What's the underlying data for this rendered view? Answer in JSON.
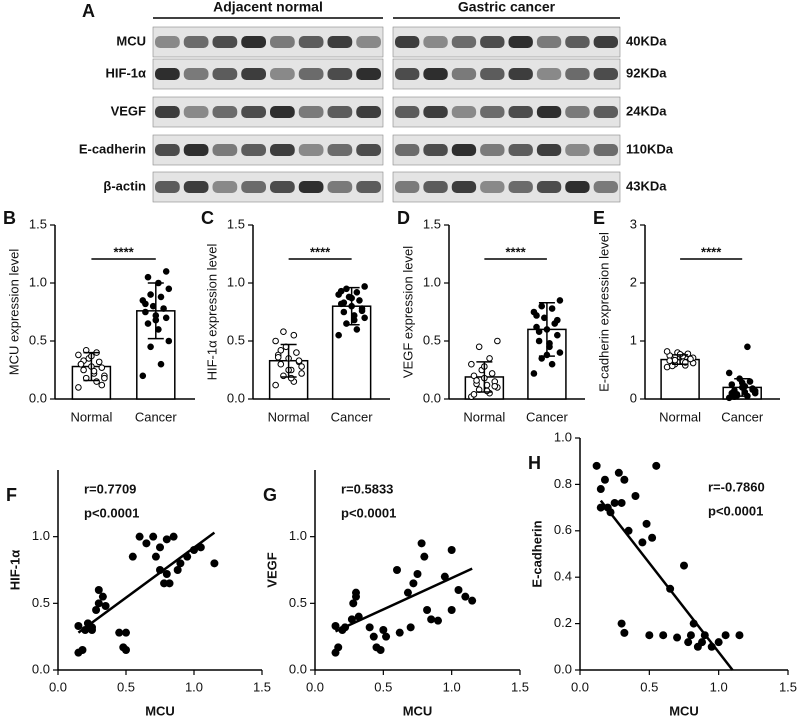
{
  "blot": {
    "panel": "A",
    "groups": [
      "Adjacent normal",
      "Gastric cancer"
    ],
    "rows": [
      {
        "label": "MCU",
        "size": "40KDa"
      },
      {
        "label": "HIF-1α",
        "size": "92KDa"
      },
      {
        "label": "VEGF",
        "size": "24KDa"
      },
      {
        "label": "E-cadherin",
        "size": "110KDa"
      },
      {
        "label": "β-actin",
        "size": "43KDa"
      }
    ]
  },
  "chart_data": [
    {
      "type": "bar",
      "panel": "B",
      "ylabel": "MCU expression level",
      "categories": [
        "Normal",
        "Cancer"
      ],
      "values": [
        0.28,
        0.76
      ],
      "errors": [
        0.12,
        0.24
      ],
      "points": [
        [
          0.1,
          0.15,
          0.18,
          0.2,
          0.22,
          0.25,
          0.27,
          0.28,
          0.3,
          0.32,
          0.35,
          0.38,
          0.4,
          0.42,
          0.18,
          0.24,
          0.33,
          0.12,
          0.37,
          0.3
        ],
        [
          0.2,
          0.3,
          0.45,
          0.5,
          0.6,
          0.65,
          0.7,
          0.72,
          0.75,
          0.78,
          0.8,
          0.85,
          0.88,
          0.9,
          0.95,
          1.0,
          1.05,
          1.1,
          0.68,
          0.82
        ]
      ],
      "marker_fill": [
        "open",
        "filled"
      ],
      "significance": "****",
      "color": "#ffffff",
      "ylim": [
        0,
        1.5
      ],
      "yticks": [
        {
          "value": 0,
          "label": "0.0"
        },
        0.5,
        {
          "value": 1,
          "label": "1.0"
        },
        1.5
      ]
    },
    {
      "type": "bar",
      "panel": "C",
      "ylabel": "HIF-1α expression level",
      "categories": [
        "Normal",
        "Cancer"
      ],
      "values": [
        0.33,
        0.8
      ],
      "errors": [
        0.14,
        0.16
      ],
      "points": [
        [
          0.12,
          0.15,
          0.2,
          0.22,
          0.25,
          0.3,
          0.32,
          0.35,
          0.38,
          0.4,
          0.45,
          0.5,
          0.55,
          0.58,
          0.28,
          0.18,
          0.42,
          0.33,
          0.25,
          0.36
        ],
        [
          0.55,
          0.6,
          0.65,
          0.7,
          0.72,
          0.75,
          0.78,
          0.8,
          0.82,
          0.85,
          0.88,
          0.9,
          0.92,
          0.95,
          0.97,
          0.68,
          0.83,
          0.76,
          0.87,
          0.93
        ]
      ],
      "marker_fill": [
        "open",
        "filled"
      ],
      "significance": "****",
      "color": "#ffffff",
      "ylim": [
        0,
        1.5
      ],
      "yticks": [
        {
          "value": 0,
          "label": "0.0"
        },
        0.5,
        {
          "value": 1,
          "label": "1.0"
        },
        1.5
      ]
    },
    {
      "type": "bar",
      "panel": "D",
      "ylabel": "VEGF expression level",
      "categories": [
        "Normal",
        "Cancer"
      ],
      "values": [
        0.19,
        0.6
      ],
      "errors": [
        0.13,
        0.23
      ],
      "points": [
        [
          0.02,
          0.05,
          0.08,
          0.1,
          0.12,
          0.13,
          0.15,
          0.18,
          0.2,
          0.22,
          0.25,
          0.3,
          0.35,
          0.45,
          0.5,
          0.07,
          0.16,
          0.11,
          0.28,
          0.04
        ],
        [
          0.22,
          0.3,
          0.35,
          0.4,
          0.45,
          0.5,
          0.55,
          0.6,
          0.62,
          0.65,
          0.7,
          0.75,
          0.78,
          0.8,
          0.85,
          0.48,
          0.58,
          0.68,
          0.38,
          0.72
        ]
      ],
      "marker_fill": [
        "open",
        "filled"
      ],
      "significance": "****",
      "color": "#ffffff",
      "ylim": [
        0,
        1.5
      ],
      "yticks": [
        {
          "value": 0,
          "label": "0.0"
        },
        0.5,
        {
          "value": 1,
          "label": "1.0"
        },
        1.5
      ]
    },
    {
      "type": "bar",
      "panel": "E",
      "ylabel": "E-cadherin expression level",
      "categories": [
        "Normal",
        "Cancer"
      ],
      "values": [
        0.68,
        0.2
      ],
      "errors": [
        0.08,
        0.15
      ],
      "points": [
        [
          0.55,
          0.58,
          0.6,
          0.62,
          0.65,
          0.68,
          0.7,
          0.72,
          0.75,
          0.78,
          0.8,
          0.82,
          0.63,
          0.67,
          0.71,
          0.74,
          0.57,
          0.69,
          0.77,
          0.66
        ],
        [
          0.02,
          0.05,
          0.08,
          0.1,
          0.12,
          0.15,
          0.18,
          0.2,
          0.25,
          0.3,
          0.35,
          0.45,
          0.9,
          0.06,
          0.14,
          0.22,
          0.04,
          0.16,
          0.28,
          0.1
        ]
      ],
      "marker_fill": [
        "open",
        "filled"
      ],
      "significance": "****",
      "color": "#ffffff",
      "ylim": [
        0,
        3
      ],
      "yticks": [
        0,
        1,
        2,
        3
      ]
    },
    {
      "type": "scatter",
      "panel": "F",
      "xlabel": "MCU",
      "ylabel": "HIF-1α",
      "x": [
        0.15,
        0.15,
        0.18,
        0.2,
        0.22,
        0.25,
        0.28,
        0.3,
        0.3,
        0.33,
        0.35,
        0.45,
        0.48,
        0.5,
        0.5,
        0.55,
        0.6,
        0.65,
        0.7,
        0.72,
        0.75,
        0.78,
        0.8,
        0.82,
        0.8,
        0.85,
        0.88,
        0.9,
        0.95,
        1.0,
        1.05,
        1.15,
        0.75,
        0.25
      ],
      "y": [
        0.33,
        0.13,
        0.15,
        0.3,
        0.35,
        0.3,
        0.45,
        0.5,
        0.6,
        0.55,
        0.48,
        0.28,
        0.17,
        0.28,
        0.15,
        0.85,
        1.0,
        0.95,
        1.0,
        0.85,
        0.75,
        0.65,
        0.72,
        0.65,
        0.98,
        1.0,
        0.75,
        0.8,
        0.85,
        0.9,
        0.92,
        0.8,
        0.92,
        0.32
      ],
      "fit": {
        "x": [
          0.15,
          1.15
        ],
        "y": [
          0.28,
          1.03
        ]
      },
      "annotations": [
        "r=0.7709",
        "p<0.0001"
      ],
      "xlim": [
        0,
        1.5
      ],
      "xticks": [
        {
          "value": 0,
          "label": "0.0"
        },
        0.5,
        {
          "value": 1,
          "label": "1.0"
        },
        1.5
      ],
      "ylim": [
        0,
        1.5
      ],
      "yticks": [
        {
          "value": 0,
          "label": "0.0"
        },
        0.5,
        {
          "value": 1,
          "label": "1.0"
        }
      ]
    },
    {
      "type": "scatter",
      "panel": "G",
      "xlabel": "MCU",
      "ylabel": "VEGF",
      "x": [
        0.15,
        0.17,
        0.15,
        0.2,
        0.22,
        0.27,
        0.28,
        0.3,
        0.3,
        0.32,
        0.4,
        0.43,
        0.45,
        0.48,
        0.5,
        0.52,
        0.6,
        0.62,
        0.7,
        0.72,
        0.75,
        0.78,
        0.8,
        0.82,
        0.85,
        0.9,
        0.95,
        1.0,
        1.0,
        1.05,
        1.1,
        1.15,
        0.68
      ],
      "y": [
        0.13,
        0.17,
        0.33,
        0.3,
        0.32,
        0.38,
        0.5,
        0.55,
        0.58,
        0.4,
        0.32,
        0.25,
        0.17,
        0.15,
        0.3,
        0.25,
        0.75,
        0.28,
        0.32,
        0.65,
        0.72,
        0.95,
        0.85,
        0.45,
        0.38,
        0.37,
        0.7,
        0.9,
        0.45,
        0.6,
        0.55,
        0.52,
        0.58
      ],
      "fit": {
        "x": [
          0.15,
          1.15
        ],
        "y": [
          0.29,
          0.76
        ]
      },
      "annotations": [
        "r=0.5833",
        "p<0.0001"
      ],
      "xlim": [
        0,
        1.5
      ],
      "xticks": [
        {
          "value": 0,
          "label": "0.0"
        },
        0.5,
        {
          "value": 1,
          "label": "1.0"
        },
        1.5
      ],
      "ylim": [
        0,
        1.5
      ],
      "yticks": [
        {
          "value": 0,
          "label": "0.0"
        },
        0.5,
        {
          "value": 1,
          "label": "1.0"
        }
      ]
    },
    {
      "type": "scatter",
      "panel": "H",
      "xlabel": "MCU",
      "ylabel": "E-cadherin",
      "x": [
        0.12,
        0.15,
        0.15,
        0.18,
        0.2,
        0.22,
        0.25,
        0.28,
        0.3,
        0.32,
        0.3,
        0.32,
        0.35,
        0.4,
        0.45,
        0.48,
        0.5,
        0.52,
        0.55,
        0.6,
        0.65,
        0.7,
        0.75,
        0.8,
        0.82,
        0.85,
        0.88,
        0.9,
        0.95,
        1.0,
        1.05,
        1.15,
        0.78
      ],
      "y": [
        0.88,
        0.78,
        0.7,
        0.82,
        0.7,
        0.68,
        0.72,
        0.85,
        0.72,
        0.82,
        0.2,
        0.16,
        0.6,
        0.75,
        0.55,
        0.63,
        0.15,
        0.57,
        0.88,
        0.15,
        0.35,
        0.14,
        0.45,
        0.15,
        0.2,
        0.1,
        0.12,
        0.15,
        0.1,
        0.12,
        0.15,
        0.15,
        0.12
      ],
      "fit": {
        "x": [
          0.15,
          1.1
        ],
        "y": [
          0.73,
          0
        ]
      },
      "annotations": [
        "r=-0.7860",
        "p<0.0001"
      ],
      "xlim": [
        0,
        1.5
      ],
      "xticks": [
        {
          "value": 0,
          "label": "0.0"
        },
        0.5,
        {
          "value": 1,
          "label": "1.0"
        },
        1.5
      ],
      "ylim": [
        0,
        1
      ],
      "yticks": [
        {
          "value": 0,
          "label": "0.0"
        },
        0.2,
        0.4,
        0.6,
        0.8,
        {
          "value": 1,
          "label": "1.0"
        }
      ]
    }
  ]
}
